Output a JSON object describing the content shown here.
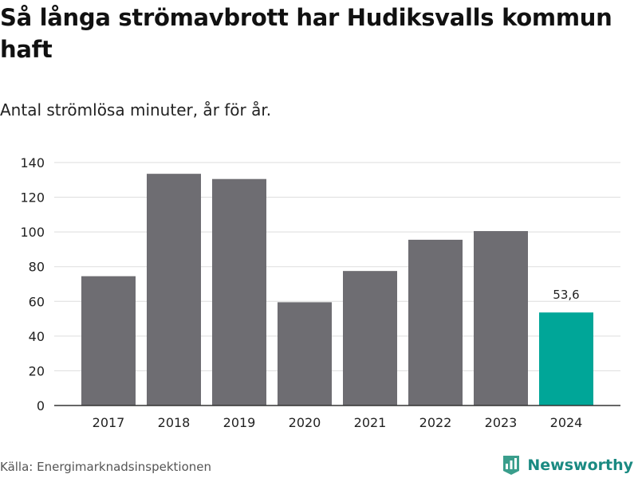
{
  "title": "Så långa strömavbrott har Hudiksvalls kommun haft",
  "subtitle": "Antal strömlösa minuter, år för år.",
  "source": "Källa: Energimarknadsinspektionen",
  "brand": {
    "name": "Newsworthy",
    "logo_icon": "bar-chart-logo-icon"
  },
  "colors": {
    "bar": "#6e6d72",
    "highlight": "#00a698",
    "grid": "#dddddd",
    "axis": "#333333",
    "text": "#222222"
  },
  "chart_data": {
    "type": "bar",
    "categories": [
      "2017",
      "2018",
      "2019",
      "2020",
      "2021",
      "2022",
      "2023",
      "2024"
    ],
    "values": [
      74.5,
      133.5,
      130.5,
      59.5,
      77.5,
      95.5,
      100.5,
      53.6
    ],
    "highlight_index": 7,
    "data_labels": [
      {
        "index": 7,
        "text": "53,6"
      }
    ],
    "yticks": [
      0,
      20,
      40,
      60,
      80,
      100,
      120,
      140
    ],
    "ylim": [
      0,
      140
    ],
    "xlabel": "",
    "ylabel": "",
    "grid": true,
    "title": "Så långa strömavbrott har Hudiksvalls kommun haft",
    "subtitle": "Antal strömlösa minuter, år för år."
  }
}
